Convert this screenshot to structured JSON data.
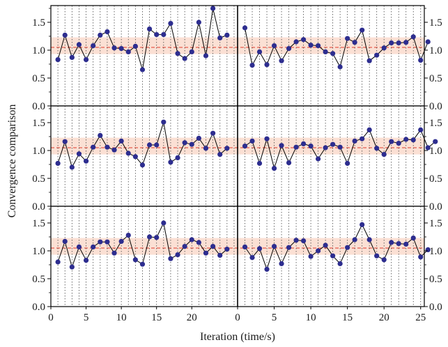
{
  "chart_data": {
    "type": "scatter",
    "ylabel": "Convergence comparison",
    "xlabel": "Iteration (time/s)",
    "x_ticks_left": [
      "0",
      "5",
      "10",
      "15",
      "20"
    ],
    "x_ticks_right": [
      "0",
      "5",
      "10",
      "15",
      "20",
      "25"
    ],
    "y_ticks": [
      "0.0",
      "0.5",
      "1.0",
      "1.5"
    ],
    "ylim": [
      0,
      1.8
    ],
    "reference_line": 1.05,
    "band": [
      0.93,
      1.23
    ],
    "colors": {
      "marker": "#2d2d8f",
      "line": "#000000",
      "reference": "#e03a2a",
      "band": "#fbe0d4",
      "grid": "#444444"
    },
    "panels": [
      {
        "left": [
          0.83,
          1.27,
          0.87,
          1.1,
          0.83,
          1.08,
          1.27,
          1.33,
          1.04,
          1.03,
          0.97,
          1.07,
          0.65,
          1.38,
          1.28,
          1.28,
          1.48,
          0.94,
          0.85,
          0.97,
          1.5,
          0.9,
          1.75,
          1.22,
          1.27
        ],
        "right": [
          1.4,
          0.73,
          0.97,
          0.74,
          1.08,
          0.81,
          1.03,
          1.15,
          1.19,
          1.09,
          1.08,
          0.97,
          0.94,
          0.7,
          1.21,
          1.14,
          1.36,
          0.81,
          0.91,
          1.04,
          1.13,
          1.13,
          1.14,
          1.24,
          0.82,
          1.15
        ]
      },
      {
        "left": [
          0.77,
          1.16,
          0.7,
          0.94,
          0.81,
          1.06,
          1.27,
          1.06,
          1.01,
          1.17,
          0.95,
          0.89,
          0.74,
          1.1,
          1.1,
          1.51,
          0.79,
          0.87,
          1.14,
          1.11,
          1.22,
          1.04,
          1.31,
          0.93,
          1.04
        ],
        "right": [
          1.08,
          1.17,
          0.77,
          1.21,
          0.68,
          1.09,
          0.78,
          1.06,
          1.12,
          1.08,
          0.85,
          1.05,
          1.11,
          1.06,
          0.77,
          1.17,
          1.21,
          1.37,
          1.04,
          0.93,
          1.16,
          1.13,
          1.2,
          1.19,
          1.37,
          1.05,
          1.16
        ]
      },
      {
        "left": [
          0.8,
          1.17,
          0.71,
          1.07,
          0.83,
          1.07,
          1.16,
          1.16,
          0.96,
          1.17,
          1.28,
          0.84,
          0.76,
          1.25,
          1.24,
          1.5,
          0.86,
          0.93,
          1.08,
          1.2,
          1.15,
          0.96,
          1.08,
          0.92,
          1.03
        ],
        "right": [
          1.07,
          0.88,
          1.04,
          0.67,
          1.08,
          0.77,
          1.06,
          1.19,
          1.18,
          0.9,
          1.0,
          1.1,
          0.91,
          0.77,
          1.06,
          1.2,
          1.47,
          1.2,
          0.91,
          0.84,
          1.15,
          1.13,
          1.12,
          1.23,
          0.89,
          1.02
        ]
      }
    ]
  }
}
